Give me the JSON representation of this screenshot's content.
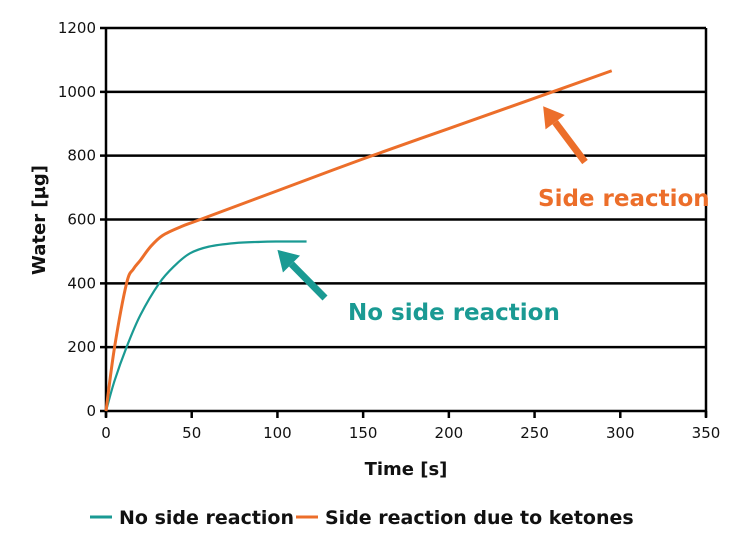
{
  "chart_data": {
    "type": "line",
    "title": "",
    "xlabel": "Time [s]",
    "ylabel": "Water [µg]",
    "xlim": [
      0,
      350
    ],
    "ylim": [
      0,
      1200
    ],
    "xticks": [
      0,
      50,
      100,
      150,
      200,
      250,
      300,
      350
    ],
    "yticks": [
      0,
      200,
      400,
      600,
      800,
      1000,
      1200
    ],
    "grid": "horizontal",
    "legend_placement": "bottom",
    "series": [
      {
        "name": "No side reaction",
        "color": "#1a9a93",
        "x": [
          0,
          5,
          12,
          20,
          31,
          40,
          49,
          60,
          75,
          90,
          100,
          117
        ],
        "y": [
          0,
          95,
          200,
          300,
          400,
          455,
          494,
          515,
          526,
          530,
          531,
          531
        ]
      },
      {
        "name": "Side reaction due to ketones",
        "color": "#ec6e2a",
        "x": [
          0,
          5,
          12,
          16,
          20,
          26,
          33,
          44,
          55,
          100,
          150,
          200,
          250,
          295
        ],
        "y": [
          0,
          200,
          400,
          445,
          472,
          515,
          550,
          578,
          600,
          690,
          790,
          885,
          980,
          1066
        ]
      }
    ],
    "annotations": [
      {
        "text": "Side reaction",
        "color": "#ec6e2a",
        "arrow_to": [
          255,
          955
        ]
      },
      {
        "text": "No side reaction",
        "color": "#1a9a93",
        "arrow_to": [
          100,
          505
        ]
      }
    ]
  }
}
